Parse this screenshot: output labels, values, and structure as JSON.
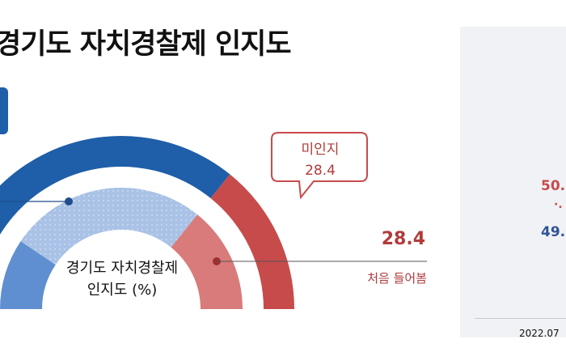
{
  "title": "경기도 자치경찰제 인지도",
  "chart_data": {
    "type": "pie",
    "subtype": "half-donut",
    "center_label_line1": "경기도 자치경찰제",
    "center_label_line2": "인지도 (%)",
    "outer_ring": [
      {
        "name": "",
        "value": 71.6,
        "color": "#1f5ea8"
      },
      {
        "name": "미인지",
        "value": 28.4,
        "color": "#c74b4b"
      }
    ],
    "inner_ring": [
      {
        "name": "",
        "value": null,
        "color": "#5f8fd0"
      },
      {
        "name": "",
        "value": null,
        "color": "#a9c2e6"
      },
      {
        "name": "처음 들어봄",
        "value": 28.4,
        "color": "#d97b7b"
      }
    ],
    "callout": {
      "label": "미인지",
      "value": "28.4"
    },
    "right_label": {
      "value": "28.4",
      "category": "처음 들어봄"
    }
  },
  "right_panel": {
    "value_top": "50.",
    "dots": "·.",
    "value_bottom": "49.",
    "date": "2022.07"
  },
  "colors": {
    "blue_dark": "#1f5ea8",
    "blue_mid": "#5f8fd0",
    "blue_light": "#a9c2e6",
    "red_dark": "#c74b4b",
    "red_light": "#d97b7b"
  }
}
